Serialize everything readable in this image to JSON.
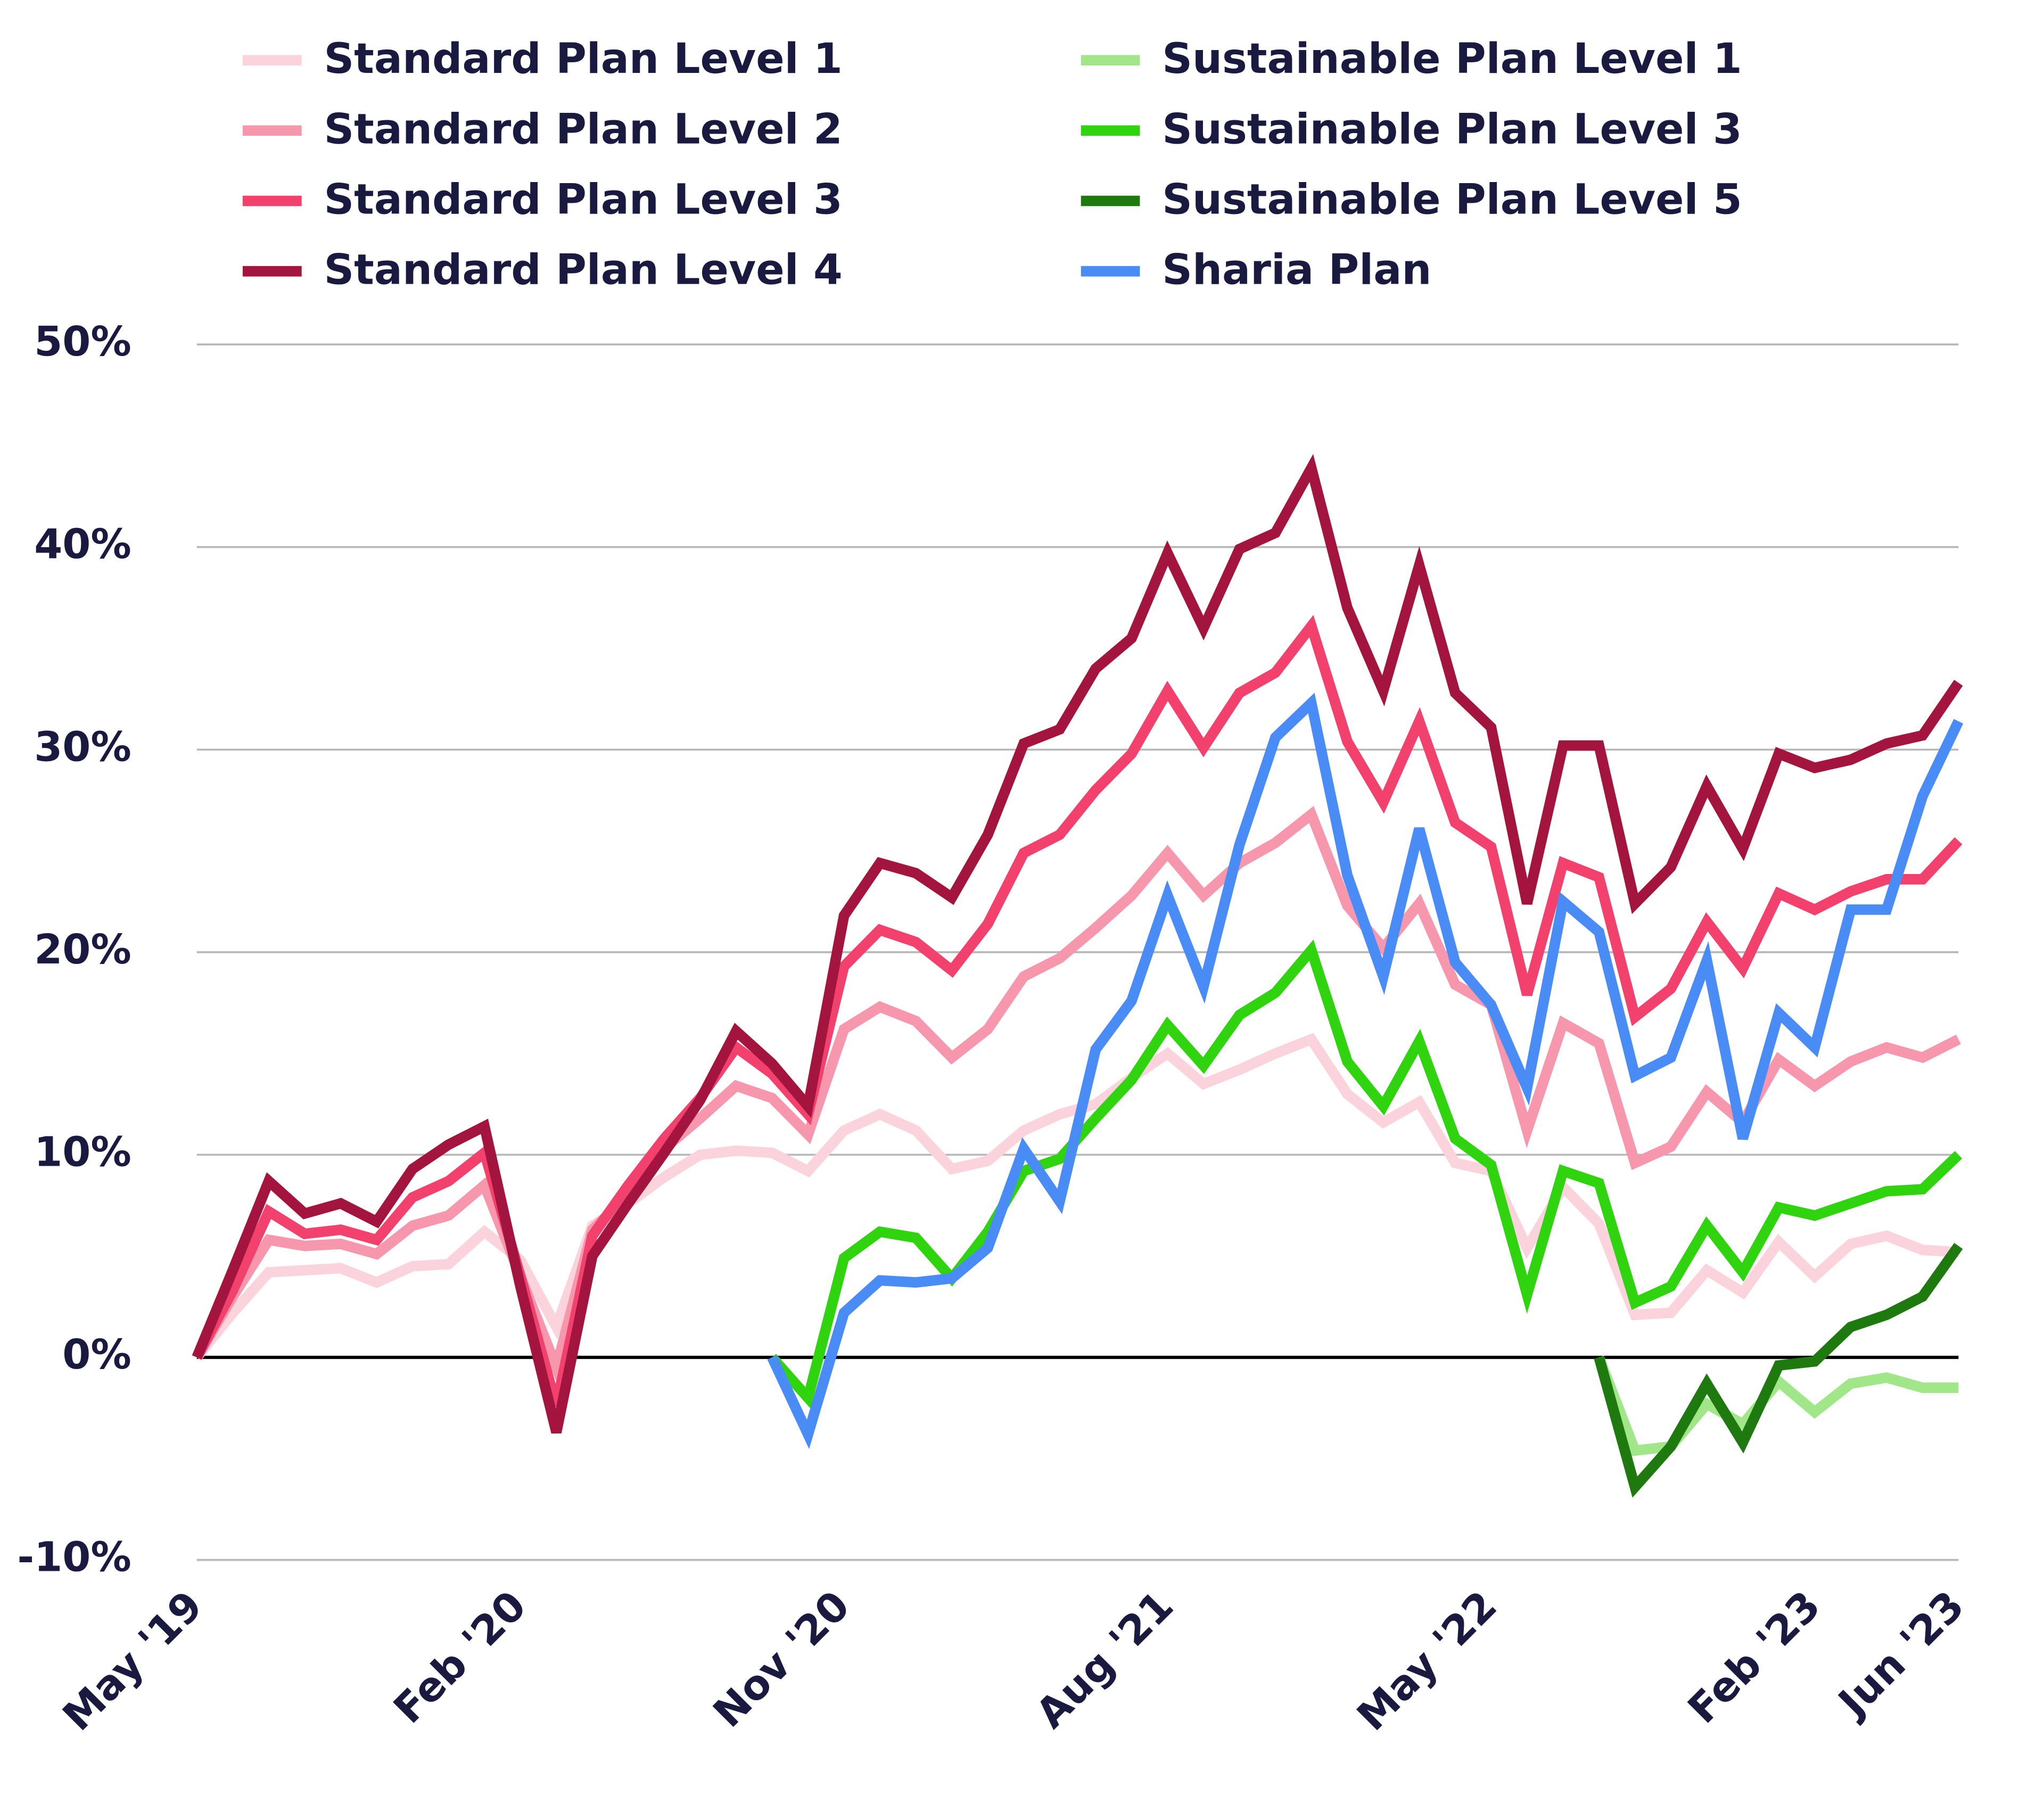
{
  "chart_data": {
    "type": "line",
    "categories": [
      "May '19",
      null,
      null,
      null,
      null,
      null,
      null,
      null,
      null,
      "Feb '20",
      null,
      null,
      null,
      null,
      null,
      null,
      null,
      null,
      "Nov '20",
      null,
      null,
      null,
      null,
      null,
      null,
      null,
      null,
      "Aug '21",
      null,
      null,
      null,
      null,
      null,
      null,
      null,
      null,
      "May '22",
      null,
      null,
      null,
      null,
      null,
      null,
      null,
      null,
      "Feb '23",
      null,
      null,
      null,
      "Jun '23"
    ],
    "ylim": [
      -10,
      50
    ],
    "yticks": [
      {
        "value": -10,
        "label": "-10%"
      },
      {
        "value": 0,
        "label": "0%"
      },
      {
        "value": 10,
        "label": "10%"
      },
      {
        "value": 20,
        "label": "20%"
      },
      {
        "value": 30,
        "label": "30%"
      },
      {
        "value": 40,
        "label": "40%"
      },
      {
        "value": 50,
        "label": "50%"
      }
    ],
    "grid": true,
    "legend": "top",
    "series": [
      {
        "name": "Standard Plan Level 1",
        "color": "#fbd3dc",
        "values": [
          0,
          2.2,
          4.2,
          4.3,
          4.4,
          3.7,
          4.5,
          4.6,
          6.2,
          4.8,
          1.5,
          6.5,
          7.6,
          8.9,
          10.0,
          10.2,
          10.1,
          9.2,
          11.2,
          12.0,
          11.2,
          9.3,
          9.7,
          11.2,
          12.0,
          12.5,
          13.8,
          15.0,
          13.5,
          14.2,
          15.0,
          15.7,
          13.0,
          11.6,
          12.6,
          9.6,
          9.2,
          5.4,
          8.4,
          6.6,
          2.1,
          2.2,
          4.3,
          3.2,
          5.7,
          4.0,
          5.6,
          6.0,
          5.3,
          5.2
        ]
      },
      {
        "name": "Standard Plan Level 2",
        "color": "#f797ae",
        "values": [
          0,
          3.0,
          5.8,
          5.5,
          5.6,
          5.1,
          6.5,
          7.0,
          8.5,
          4.0,
          -0.5,
          6.3,
          8.0,
          10.3,
          11.8,
          13.4,
          12.8,
          11.0,
          16.2,
          17.3,
          16.6,
          14.8,
          16.2,
          18.8,
          19.7,
          21.2,
          22.8,
          24.9,
          22.8,
          24.4,
          25.4,
          26.8,
          22.3,
          20.2,
          22.4,
          18.4,
          17.4,
          11.2,
          16.5,
          15.5,
          9.6,
          10.4,
          13.1,
          11.6,
          14.7,
          13.4,
          14.6,
          15.3,
          14.8,
          15.7
        ]
      },
      {
        "name": "Standard Plan Level 3",
        "color": "#f2416d",
        "values": [
          0,
          3.3,
          7.2,
          6.1,
          6.3,
          5.8,
          7.9,
          8.7,
          10.1,
          4.0,
          -2.4,
          6.0,
          8.5,
          10.8,
          12.8,
          15.3,
          14.0,
          12.0,
          19.3,
          21.1,
          20.5,
          19.1,
          21.4,
          24.9,
          25.8,
          28.0,
          29.8,
          32.9,
          30.1,
          32.8,
          33.8,
          36.1,
          30.4,
          27.4,
          31.4,
          26.4,
          25.2,
          17.9,
          24.4,
          23.7,
          16.8,
          18.2,
          21.5,
          19.2,
          22.9,
          22.1,
          23.0,
          23.6,
          23.6,
          25.5
        ]
      },
      {
        "name": "Standard Plan Level 4",
        "color": "#a3143f",
        "values": [
          0,
          4.3,
          8.7,
          7.1,
          7.6,
          6.7,
          9.3,
          10.5,
          11.4,
          3.5,
          -3.7,
          5.0,
          7.6,
          10.1,
          12.7,
          16.1,
          14.5,
          12.4,
          21.8,
          24.4,
          23.9,
          22.7,
          25.8,
          30.3,
          31.0,
          34.0,
          35.5,
          39.7,
          36.0,
          39.9,
          40.7,
          43.9,
          37.0,
          32.9,
          39.1,
          32.8,
          31.1,
          22.4,
          30.2,
          30.2,
          22.4,
          24.2,
          28.2,
          25.1,
          29.8,
          29.1,
          29.5,
          30.3,
          30.7,
          33.3
        ]
      },
      {
        "name": "Sustainable Plan Level 1",
        "color": "#a2e68a",
        "values": [
          null,
          null,
          null,
          null,
          null,
          null,
          null,
          null,
          null,
          null,
          null,
          null,
          null,
          null,
          null,
          null,
          null,
          null,
          null,
          null,
          null,
          null,
          null,
          null,
          null,
          null,
          null,
          null,
          null,
          null,
          null,
          null,
          null,
          null,
          null,
          null,
          null,
          null,
          null,
          0,
          -4.6,
          -4.4,
          -2.3,
          -3.3,
          -1.2,
          -2.7,
          -1.3,
          -1.0,
          -1.5,
          -1.5
        ]
      },
      {
        "name": "Sustainable Plan Level 3",
        "color": "#2fd40f",
        "values": [
          null,
          null,
          null,
          null,
          null,
          null,
          null,
          null,
          null,
          null,
          null,
          null,
          null,
          null,
          null,
          null,
          0,
          -2.0,
          4.9,
          6.2,
          5.9,
          3.9,
          6.2,
          9.2,
          9.8,
          11.8,
          13.7,
          16.4,
          14.4,
          16.9,
          18.0,
          20.1,
          14.6,
          12.4,
          15.6,
          10.8,
          9.5,
          3.1,
          9.2,
          8.6,
          2.7,
          3.5,
          6.5,
          4.2,
          7.4,
          7.0,
          7.6,
          8.2,
          8.3,
          10.0
        ]
      },
      {
        "name": "Sustainable Plan Level 5",
        "color": "#1e7a0e",
        "values": [
          null,
          null,
          null,
          null,
          null,
          null,
          null,
          null,
          null,
          null,
          null,
          null,
          null,
          null,
          null,
          null,
          null,
          null,
          null,
          null,
          null,
          null,
          null,
          null,
          null,
          null,
          null,
          null,
          null,
          null,
          null,
          null,
          null,
          null,
          null,
          null,
          null,
          null,
          null,
          0,
          -6.4,
          -4.4,
          -1.3,
          -4.2,
          -0.4,
          -0.2,
          1.5,
          2.1,
          3.0,
          5.5
        ]
      },
      {
        "name": "Sharia Plan",
        "color": "#4a8cf5",
        "values": [
          null,
          null,
          null,
          null,
          null,
          null,
          null,
          null,
          null,
          null,
          null,
          null,
          null,
          null,
          null,
          null,
          0,
          -3.8,
          2.2,
          3.8,
          3.7,
          3.9,
          5.4,
          10.3,
          7.7,
          15.2,
          17.6,
          22.8,
          18.3,
          25.3,
          30.6,
          32.3,
          23.8,
          18.8,
          26.1,
          19.5,
          17.4,
          13.3,
          22.5,
          21.0,
          13.9,
          14.8,
          19.6,
          10.8,
          17.0,
          15.3,
          22.1,
          22.1,
          27.7,
          31.4
        ]
      }
    ]
  }
}
